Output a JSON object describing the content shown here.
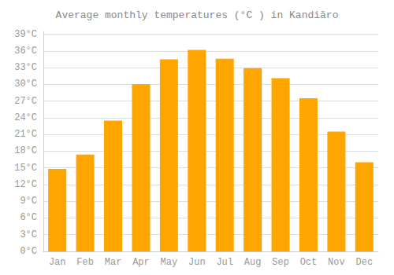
{
  "chart_data": {
    "type": "bar",
    "title": "Average monthly temperatures (°C ) in Kandiāro",
    "categories": [
      "Jan",
      "Feb",
      "Mar",
      "Apr",
      "May",
      "Jun",
      "Jul",
      "Aug",
      "Sep",
      "Oct",
      "Nov",
      "Dec"
    ],
    "values": [
      14.8,
      17.4,
      23.5,
      30.0,
      34.5,
      36.2,
      34.6,
      32.9,
      31.1,
      27.5,
      21.5,
      16.0
    ],
    "color": "#FFA500",
    "ylim": [
      0,
      39.5
    ],
    "yticks": [
      {
        "value": 0,
        "label": "0°C"
      },
      {
        "value": 3,
        "label": "3°C"
      },
      {
        "value": 6,
        "label": "6°C"
      },
      {
        "value": 9,
        "label": "9°C"
      },
      {
        "value": 12,
        "label": "12°C"
      },
      {
        "value": 15,
        "label": "15°C"
      },
      {
        "value": 18,
        "label": "18°C"
      },
      {
        "value": 21,
        "label": "21°C"
      },
      {
        "value": 24,
        "label": "24°C"
      },
      {
        "value": 27,
        "label": "27°C"
      },
      {
        "value": 30,
        "label": "30°C"
      },
      {
        "value": 33,
        "label": "33°C"
      },
      {
        "value": 36,
        "label": "36°C"
      },
      {
        "value": 39,
        "label": "39°C"
      }
    ],
    "grid": true
  }
}
